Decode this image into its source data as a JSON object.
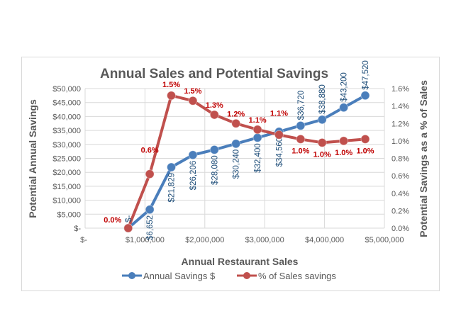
{
  "chart_data": {
    "type": "line",
    "title": "Annual Sales and Potential Savings",
    "xlabel": "Annual Restaurant Sales",
    "ylabel": "Potential Annual Savings",
    "y2label": "Potential Savings as a % of Sales",
    "xlim": [
      0,
      5000000
    ],
    "ylim": [
      0,
      50000
    ],
    "y2lim": [
      0,
      1.6
    ],
    "x_ticks": [
      "$-",
      "$1,000,000",
      "$2,000,000",
      "$3,000,000",
      "$4,000,000",
      "$5,000,000"
    ],
    "y_ticks": [
      "$-",
      "$5,000",
      "$10,000",
      "$15,000",
      "$20,000",
      "$25,000",
      "$30,000",
      "$35,000",
      "$40,000",
      "$45,000",
      "$50,000"
    ],
    "y2_ticks": [
      "0.0%",
      "0.2%",
      "0.4%",
      "0.6%",
      "0.8%",
      "1.0%",
      "1.2%",
      "1.4%",
      "1.6%"
    ],
    "grid": true,
    "legend": "bottom",
    "x": [
      720000,
      1080000,
      1440000,
      1800000,
      2160000,
      2520000,
      2880000,
      3240000,
      3600000,
      3960000,
      4320000,
      4680000
    ],
    "series": [
      {
        "name": "Annual Savings $",
        "axis": "left",
        "color": "#4a7ebb",
        "values": [
          0,
          6652,
          21829,
          26206,
          28080,
          30240,
          32400,
          34560,
          36720,
          38880,
          43200,
          47520
        ],
        "labels": [
          "$-",
          "$6,652",
          "$21,829",
          "$26,206",
          "$28,080",
          "$30,240",
          "$32,400",
          "$34,560",
          "$36,720",
          "$38,880",
          "$43,200",
          "$47,520"
        ]
      },
      {
        "name": "% of Sales savings",
        "axis": "right",
        "color": "#c0504d",
        "values": [
          0.0,
          0.62,
          1.52,
          1.46,
          1.3,
          1.2,
          1.13,
          1.07,
          1.02,
          0.98,
          1.0,
          1.02
        ],
        "labels": [
          "0.0%",
          "0.6%",
          "1.5%",
          "1.5%",
          "1.3%",
          "1.2%",
          "1.1%",
          "1.1%",
          "1.0%",
          "1.0%",
          "1.0%",
          "1.0%"
        ]
      }
    ]
  }
}
